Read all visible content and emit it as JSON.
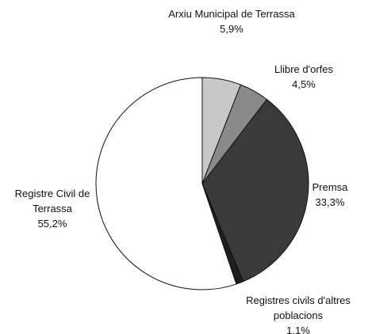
{
  "chart_data": {
    "type": "pie",
    "categories": [
      "Arxiu Municipal de Terrassa",
      "Llibre d'orfes",
      "Premsa",
      "Registres civils d'altres poblacions",
      "Registre Civil de Terrassa"
    ],
    "values": [
      5.9,
      4.5,
      33.3,
      1.1,
      55.2
    ],
    "value_labels": [
      "5,9%",
      "4,5%",
      "33,3%",
      "1,1%",
      "55,2%"
    ],
    "colors": [
      "#c8c8c8",
      "#8a8a8a",
      "#3a3a3a",
      "#1e1e1e",
      "#ffffff"
    ]
  }
}
